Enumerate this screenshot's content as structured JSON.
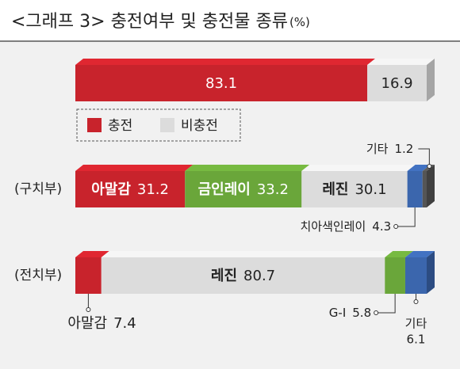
{
  "title": "<그래프 3> 충전여부 및 충전물 종류",
  "unit": "(%)",
  "chart_data": [
    {
      "type": "stacked-bar",
      "categories": [
        null
      ],
      "xlim": [
        0,
        100
      ],
      "legend": true,
      "series": [
        {
          "name": "충전",
          "color": "#c8232c",
          "values": [
            83.1
          ],
          "label_position": "inside"
        },
        {
          "name": "비충전",
          "color": "#dcdcdc",
          "values": [
            16.9
          ],
          "label_position": "inside"
        }
      ]
    },
    {
      "type": "stacked-bar",
      "categories": [
        "(구치부)"
      ],
      "xlim": [
        0,
        100
      ],
      "legend": false,
      "series": [
        {
          "name": "아말감",
          "color": "#c8232c",
          "values": [
            31.2
          ],
          "label_position": "inside"
        },
        {
          "name": "금인레이",
          "color": "#6aa63a",
          "values": [
            33.2
          ],
          "label_position": "inside"
        },
        {
          "name": "레진",
          "color": "#dcdcdc",
          "values": [
            30.1
          ],
          "label_position": "inside"
        },
        {
          "name": "치아색인레이",
          "color": "#3b66ad",
          "values": [
            4.3
          ],
          "label_position": "below-left"
        },
        {
          "name": "기타",
          "color": "#555555",
          "values": [
            1.2
          ],
          "label_position": "above-left"
        }
      ]
    },
    {
      "type": "stacked-bar",
      "categories": [
        "(전치부)"
      ],
      "xlim": [
        0,
        100
      ],
      "legend": false,
      "series": [
        {
          "name": "아말감",
          "color": "#c8232c",
          "values": [
            7.4
          ],
          "label_position": "below"
        },
        {
          "name": "레진",
          "color": "#dcdcdc",
          "values": [
            80.7
          ],
          "label_position": "inside"
        },
        {
          "name": "G-I",
          "color": "#6aa63a",
          "values": [
            5.8
          ],
          "label_position": "below-left"
        },
        {
          "name": "기타",
          "color": "#3b66ad",
          "values": [
            6.1
          ],
          "label_position": "below-stacked"
        }
      ]
    }
  ]
}
